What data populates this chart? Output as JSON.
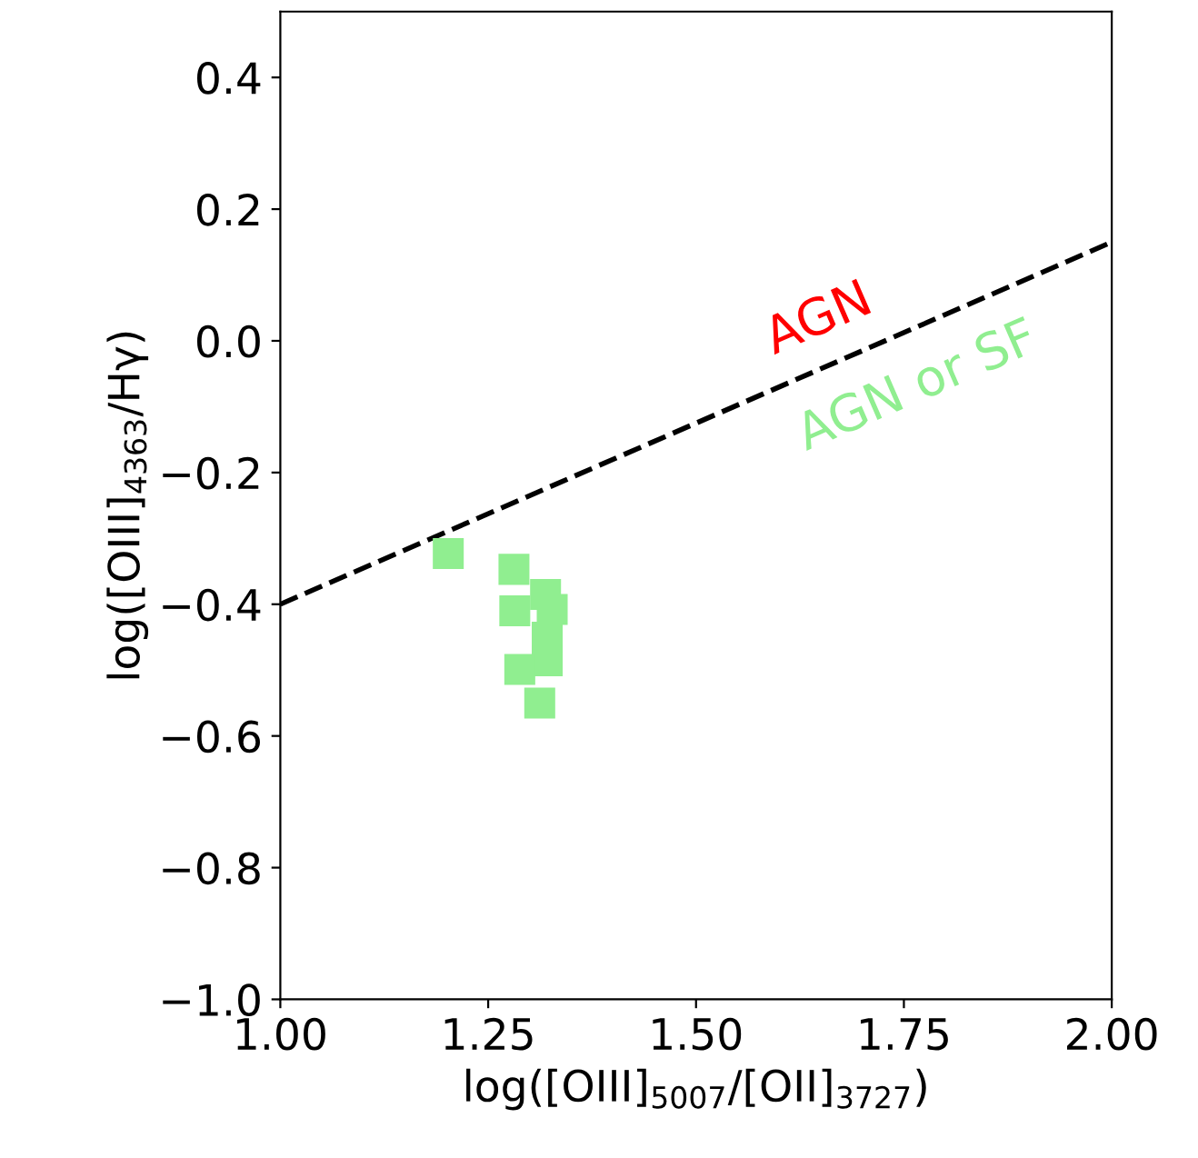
{
  "chart_data": {
    "type": "scatter",
    "xlabel": "log([OIII]$_{5007}$/[OII]$_{3727}$)",
    "ylabel": "log([OIII]$_{4363}$/Hγ)",
    "series": [
      {
        "type": "line",
        "color": "#000000",
        "line_style": "dashed",
        "marker": "none",
        "x": [
          1.0,
          2.0
        ],
        "values": [
          -0.4,
          0.15
        ]
      },
      {
        "name": "AGN or SF",
        "color": "#90ee90",
        "marker": "square",
        "x": [
          1.202,
          1.281,
          1.319,
          1.282,
          1.327,
          1.321,
          1.321,
          1.288,
          1.312
        ],
        "values": [
          -0.323,
          -0.347,
          -0.385,
          -0.41,
          -0.408,
          -0.45,
          -0.486,
          -0.499,
          -0.55
        ]
      }
    ],
    "annotations": [
      "AGN"
    ],
    "xlim": [
      1.0,
      2.0
    ],
    "ylim": [
      -1.0,
      0.5
    ],
    "xticks": [
      {
        "value": 1.0,
        "label": "1.00"
      },
      {
        "value": 1.25,
        "label": "1.25"
      },
      {
        "value": 1.5,
        "label": "1.50"
      },
      {
        "value": 1.75,
        "label": "1.75"
      },
      {
        "value": 2.0,
        "label": "2.00"
      }
    ],
    "yticks": [
      {
        "value": -1.0,
        "label": "−1.0"
      },
      {
        "value": -0.8,
        "label": "−0.8"
      },
      {
        "value": -0.6,
        "label": "−0.6"
      },
      {
        "value": -0.4,
        "label": "−0.4"
      },
      {
        "value": -0.2,
        "label": "−0.2"
      },
      {
        "value": 0.0,
        "label": "0.0"
      },
      {
        "value": 0.2,
        "label": "0.2"
      },
      {
        "value": 0.4,
        "label": "0.4"
      }
    ],
    "grid": false,
    "legend": false
  }
}
